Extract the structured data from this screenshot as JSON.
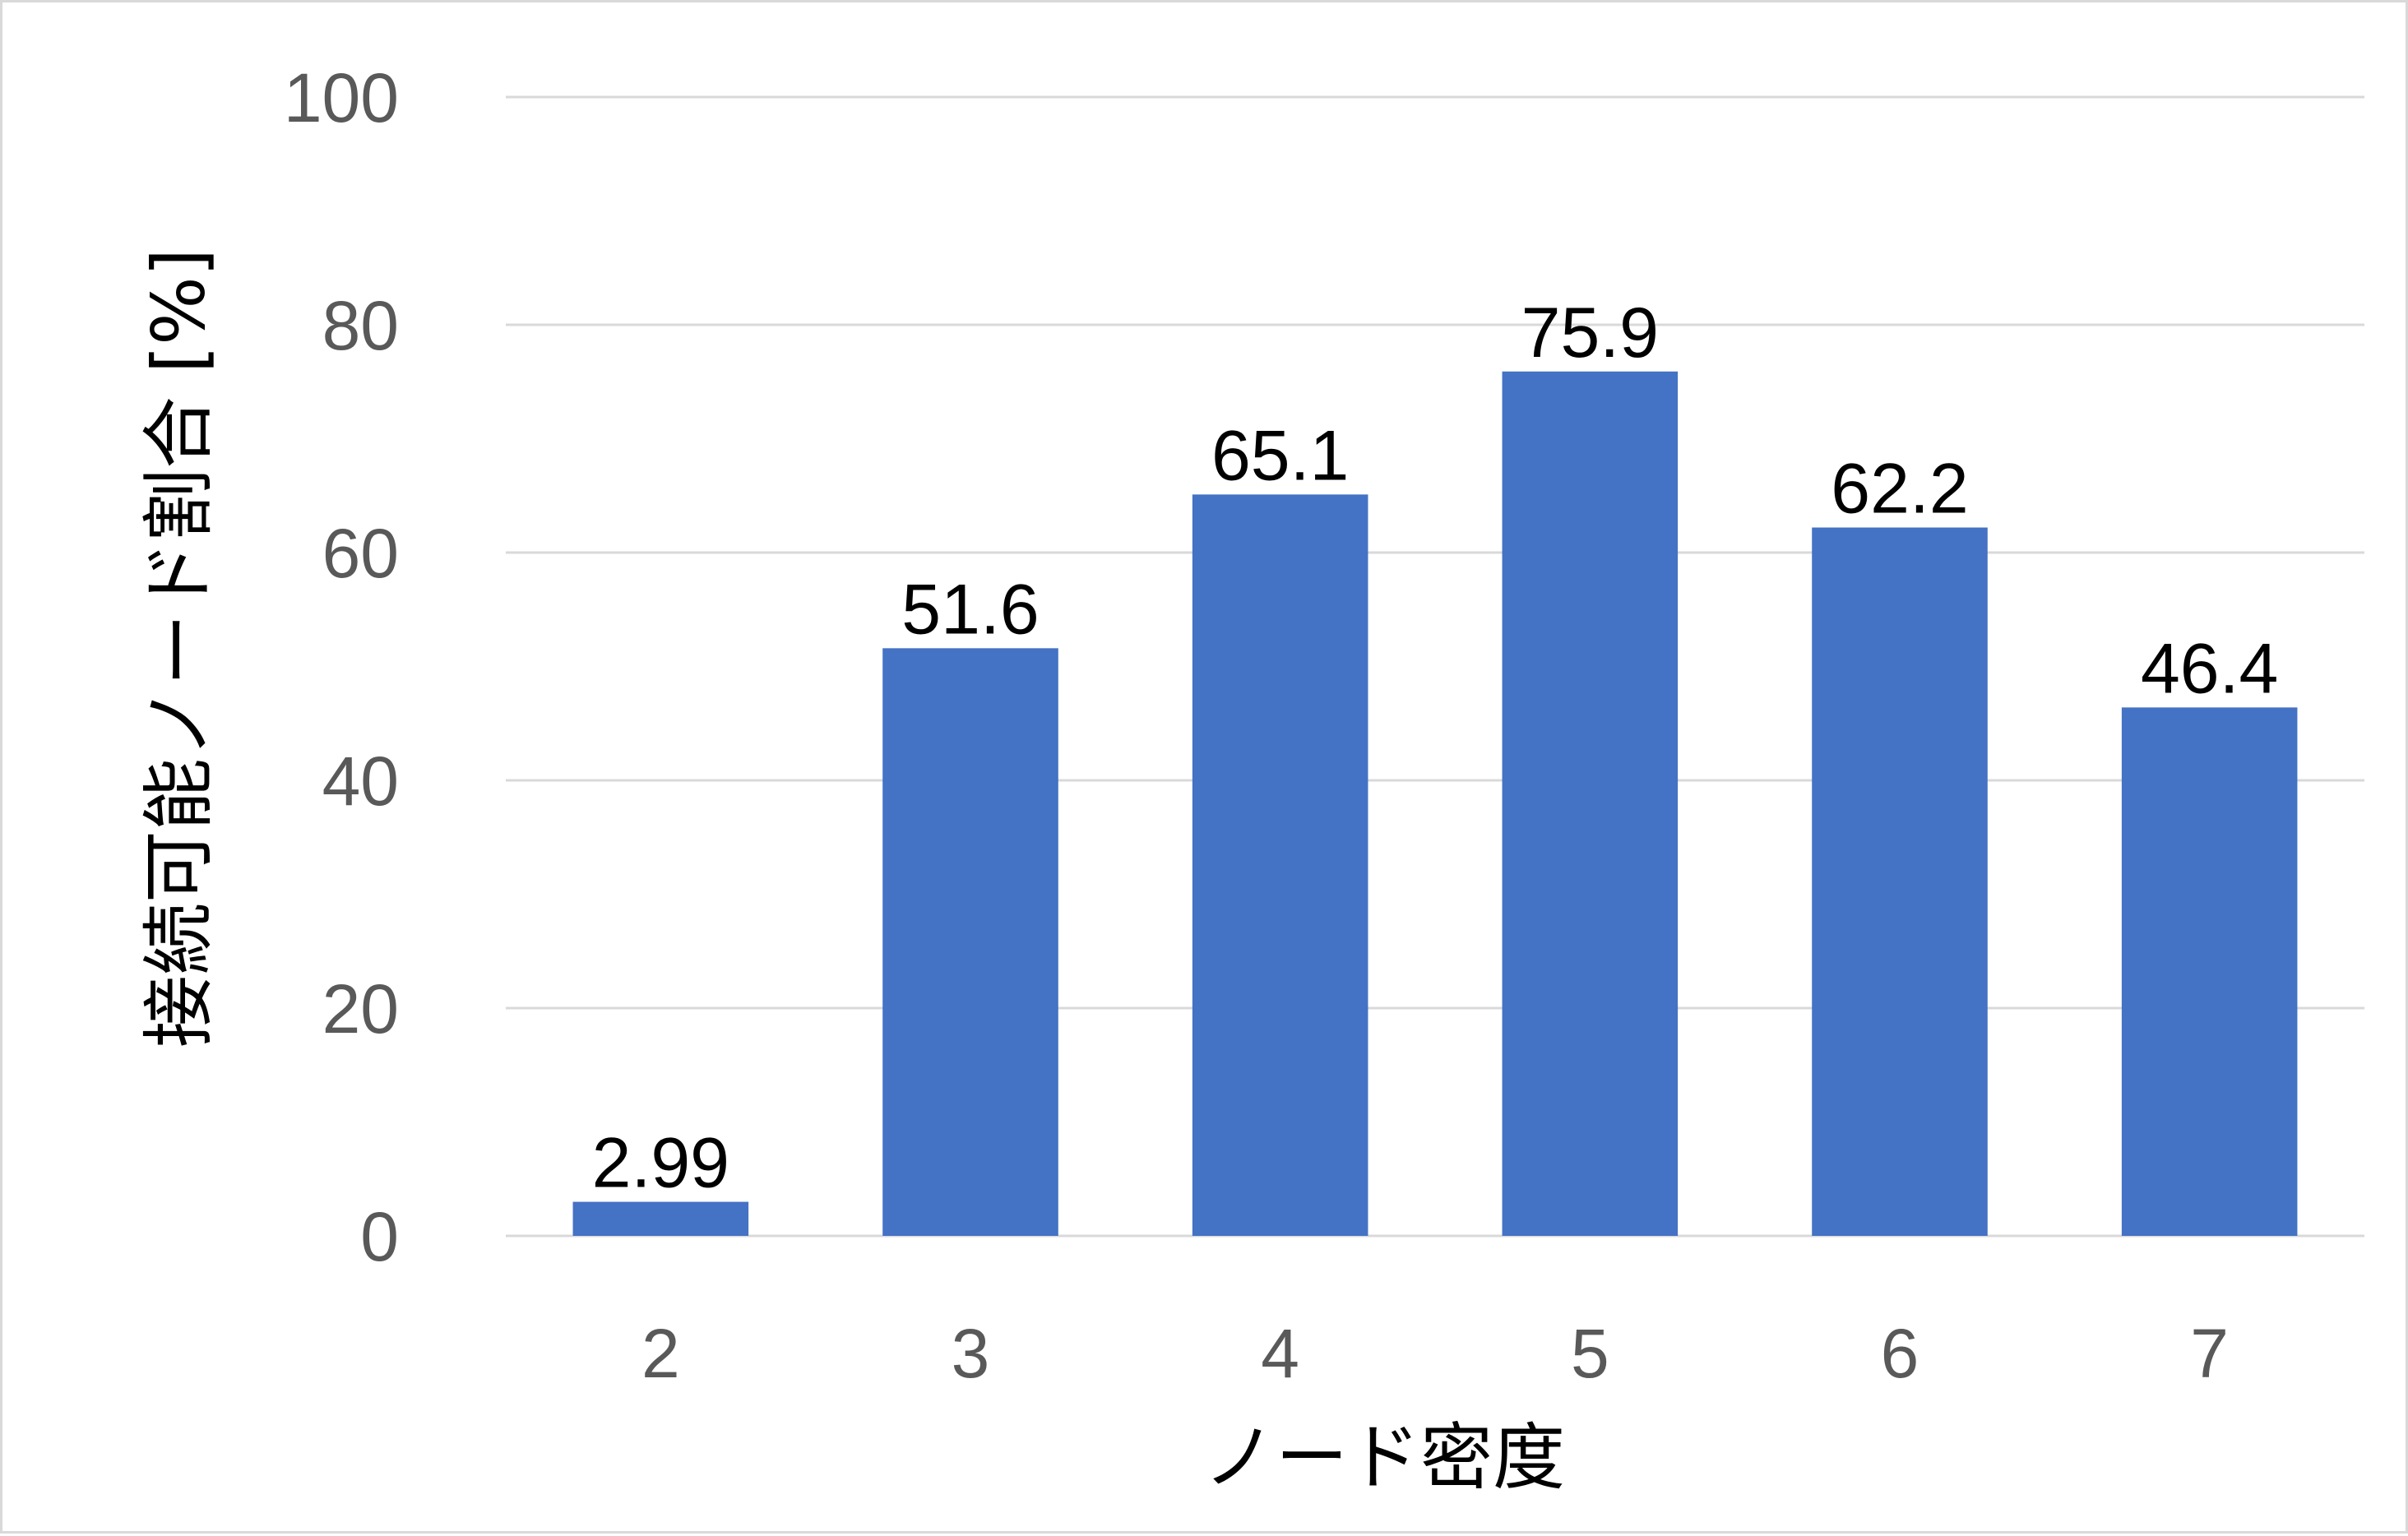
{
  "chart_data": {
    "type": "bar",
    "title": "",
    "xlabel": "ノード密度",
    "ylabel": "接続可能ノード割合 [%]",
    "categories": [
      "2",
      "3",
      "4",
      "5",
      "6",
      "7"
    ],
    "series": [
      {
        "values": [
          2.99,
          51.6,
          65.1,
          75.9,
          62.2,
          46.4
        ],
        "data_labels": [
          "2.99",
          "51.6",
          "65.1",
          "75.9",
          "62.2",
          "46.4"
        ],
        "color": "#4472C4"
      }
    ],
    "ylim": [
      0,
      100
    ],
    "yticks": [
      "0",
      "20",
      "40",
      "60",
      "80",
      "100"
    ],
    "grid": true,
    "legend": "none",
    "colors": {
      "bar": "#4472C4",
      "gridline": "#d9d9d9",
      "tick_text": "#595959"
    }
  }
}
